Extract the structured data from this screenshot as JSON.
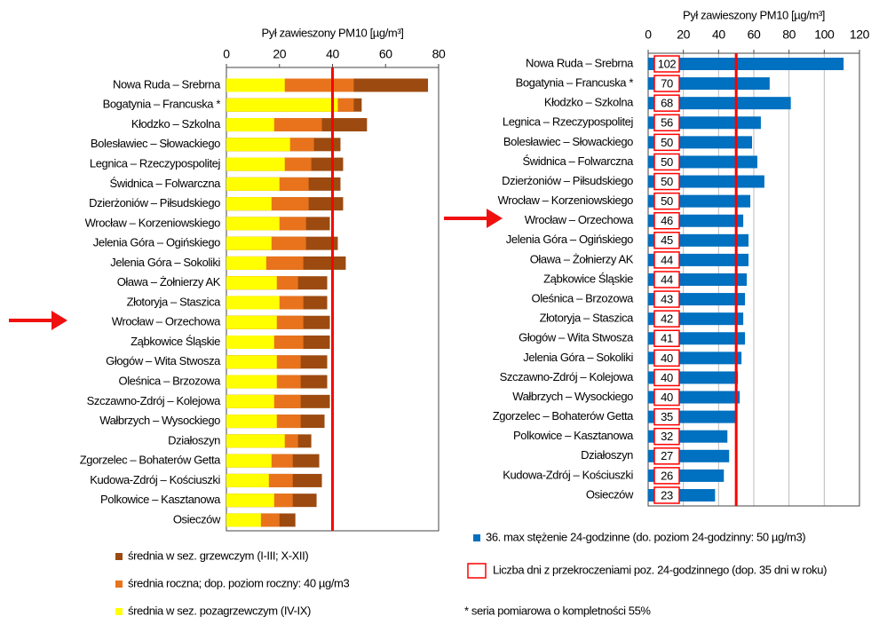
{
  "chart_data": [
    {
      "type": "bar",
      "orientation": "horizontal",
      "barmode": "overlay",
      "xlabel": "Pył zawieszony PM10 [µg/m³]",
      "categories": [
        "Nowa Ruda – Srebrna",
        "Bogatynia – Francuska *",
        "Kłodzko – Szkolna",
        "Bolesławiec – Słowackiego",
        "Legnica – Rzeczypospolitej",
        "Świdnica – Folwarczna",
        "Dzierżoniów – Piłsudskiego",
        "Wrocław – Korzeniowskiego",
        "Jelenia Góra – Ogińskiego",
        "Jelenia Góra – Sokoliki",
        "Oława – Żołnierzy AK",
        "Złotoryja – Staszica",
        "Wrocław – Orzechowa",
        "Ząbkowice Śląskie",
        "Głogów – Wita Stwosza",
        "Oleśnica – Brzozowa",
        "Szczawno-Zdrój  – Kolejowa",
        "Wałbrzych – Wysockiego",
        "Działoszyn",
        "Zgorzelec – Bohaterów Getta",
        "Kudowa-Zdrój – Kościuszki",
        "Polkowice – Kasztanowa",
        "Osieczów"
      ],
      "series": [
        {
          "name": "średnia w sez. grzewczym (I-III; X-XII)",
          "color": "#9c4a10",
          "values": [
            76,
            51,
            53,
            43,
            44,
            43,
            44,
            39,
            42,
            45,
            38,
            38,
            39,
            39,
            38,
            38,
            39,
            37,
            32,
            35,
            36,
            34,
            26
          ]
        },
        {
          "name": "średnia roczna; dop. poziom roczny: 40 µg/m3",
          "color": "#e8731c",
          "values": [
            48,
            48,
            36,
            33,
            32,
            31,
            31,
            30,
            30,
            29,
            27,
            29,
            29,
            29,
            28,
            28,
            28,
            28,
            27,
            25,
            25,
            25,
            20
          ]
        },
        {
          "name": "średnia w sez. pozagrzewczym (IV-IX)",
          "color": "#ffff00",
          "values": [
            22,
            42,
            18,
            24,
            22,
            20,
            17,
            20,
            17,
            15,
            19,
            20,
            19,
            18,
            19,
            19,
            18,
            19,
            22,
            17,
            16,
            18,
            13
          ]
        }
      ],
      "xlim": [
        0,
        80
      ],
      "xticks": [
        0,
        20,
        40,
        60,
        80
      ],
      "grid": false,
      "limit_line": {
        "value": 40,
        "color": "#ff0000"
      }
    },
    {
      "type": "bar",
      "orientation": "horizontal",
      "barmode": "overlay",
      "xlabel": "Pył zawieszony PM10 [µg/m³]",
      "categories": [
        "Nowa Ruda – Srebrna",
        "Bogatynia – Francuska *",
        "Kłodzko – Szkolna",
        "Legnica – Rzeczypospolitej",
        "Bolesławiec – Słowackiego",
        "Świdnica – Folwarczna",
        "Dzierżoniów – Piłsudskiego",
        "Wrocław – Korzeniowskiego",
        "Wrocław – Orzechowa",
        "Jelenia Góra – Ogińskiego",
        "Oława – Żołnierzy AK",
        "Ząbkowice Śląskie",
        "Oleśnica – Brzozowa",
        "Złotoryja – Staszica",
        "Głogów – Wita Stwosza",
        "Jelenia Góra – Sokoliki",
        "Szczawno-Zdrój  – Kolejowa",
        "Wałbrzych – Wysockiego",
        "Zgorzelec – Bohaterów Getta",
        "Polkowice – Kasztanowa",
        "Działoszyn",
        "Kudowa-Zdrój – Kościuszki",
        "Osieczów"
      ],
      "series": [
        {
          "name": "36. max stężenie 24-godzinne (do. poziom 24-godzinny: 50 µg/m3)",
          "color": "#0070c0",
          "values": [
            111,
            69,
            81,
            64,
            59,
            62,
            66,
            58,
            54,
            57,
            57,
            56,
            55,
            54,
            55,
            53,
            51,
            52,
            50,
            45,
            46,
            43,
            38
          ]
        },
        {
          "name": "Liczba dni z przekroczeniami poz. 24-godzinnego (dop. 35 dni w roku)",
          "color": "#ff0000",
          "kind": "label-box",
          "values": [
            102,
            70,
            68,
            56,
            50,
            50,
            50,
            50,
            46,
            45,
            44,
            44,
            43,
            42,
            41,
            40,
            40,
            40,
            35,
            32,
            27,
            26,
            23
          ]
        }
      ],
      "xlim": [
        0,
        120
      ],
      "xticks": [
        0,
        20,
        40,
        60,
        80,
        100,
        120
      ],
      "grid": true,
      "limit_line": {
        "value": 50,
        "color": "#ff0000"
      },
      "annotation": "* seria pomiarowa o kompletności 55%"
    }
  ]
}
